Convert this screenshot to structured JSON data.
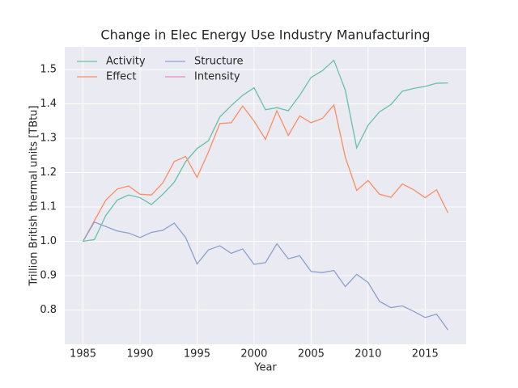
{
  "chart_data": {
    "type": "line",
    "title": "Change in Elec Energy Use Industry Manufacturing",
    "x_label": "Year",
    "y_label": "Trillion British thermal units [TBtu]",
    "x": [
      1985,
      1986,
      1987,
      1988,
      1989,
      1990,
      1991,
      1992,
      1993,
      1994,
      1995,
      1996,
      1997,
      1998,
      1999,
      2000,
      2001,
      2002,
      2003,
      2004,
      2005,
      2006,
      2007,
      2008,
      2009,
      2010,
      2011,
      2012,
      2013,
      2014,
      2015,
      2016,
      2017
    ],
    "series": [
      {
        "name": "Activity",
        "color": "#66c2a5",
        "values": [
          1.0,
          1.005,
          1.075,
          1.12,
          1.135,
          1.127,
          1.107,
          1.137,
          1.172,
          1.232,
          1.27,
          1.293,
          1.362,
          1.395,
          1.425,
          1.447,
          1.383,
          1.389,
          1.38,
          1.425,
          1.477,
          1.497,
          1.527,
          1.44,
          1.272,
          1.338,
          1.377,
          1.398,
          1.437,
          1.445,
          1.451,
          1.46,
          1.461
        ]
      },
      {
        "name": "Effect",
        "color": "#fc8d62",
        "values": [
          1.0,
          1.06,
          1.12,
          1.152,
          1.161,
          1.137,
          1.135,
          1.17,
          1.232,
          1.247,
          1.186,
          1.26,
          1.343,
          1.345,
          1.394,
          1.35,
          1.297,
          1.38,
          1.308,
          1.365,
          1.345,
          1.358,
          1.397,
          1.245,
          1.148,
          1.177,
          1.137,
          1.128,
          1.167,
          1.15,
          1.127,
          1.15,
          1.083
        ]
      },
      {
        "name": "Structure",
        "color": "#8da0cb",
        "values": [
          1.0,
          1.056,
          1.043,
          1.03,
          1.024,
          1.011,
          1.026,
          1.032,
          1.053,
          1.011,
          0.934,
          0.975,
          0.987,
          0.965,
          0.978,
          0.933,
          0.938,
          0.993,
          0.949,
          0.958,
          0.912,
          0.909,
          0.915,
          0.868,
          0.904,
          0.88,
          0.825,
          0.807,
          0.812,
          0.796,
          0.778,
          0.788,
          0.742
        ]
      },
      {
        "name": "Intensity",
        "color": "#e78ac3",
        "values": [
          null,
          null,
          null,
          null,
          null,
          null,
          null,
          null,
          null,
          null,
          null,
          null,
          null,
          null,
          null,
          null,
          null,
          null,
          null,
          null,
          null,
          null,
          null,
          null,
          null,
          null,
          null,
          null,
          null,
          null,
          null,
          null,
          null
        ]
      }
    ],
    "xlim": [
      1983.4,
      2018.6
    ],
    "xticks": [
      1985,
      1990,
      1995,
      2000,
      2005,
      2010,
      2015
    ],
    "ylim": [
      0.7,
      1.566
    ],
    "yticks": [
      {
        "value": 0.8,
        "label": "0.8"
      },
      {
        "value": 0.9,
        "label": "0.9"
      },
      {
        "value": 1.0,
        "label": "1.0"
      },
      {
        "value": 1.1,
        "label": "1.1"
      },
      {
        "value": 1.2,
        "label": "1.2"
      },
      {
        "value": 1.3,
        "label": "1.3"
      },
      {
        "value": 1.4,
        "label": "1.4"
      },
      {
        "value": 1.5,
        "label": "1.5"
      }
    ],
    "grid": true,
    "legend": "upper left"
  }
}
